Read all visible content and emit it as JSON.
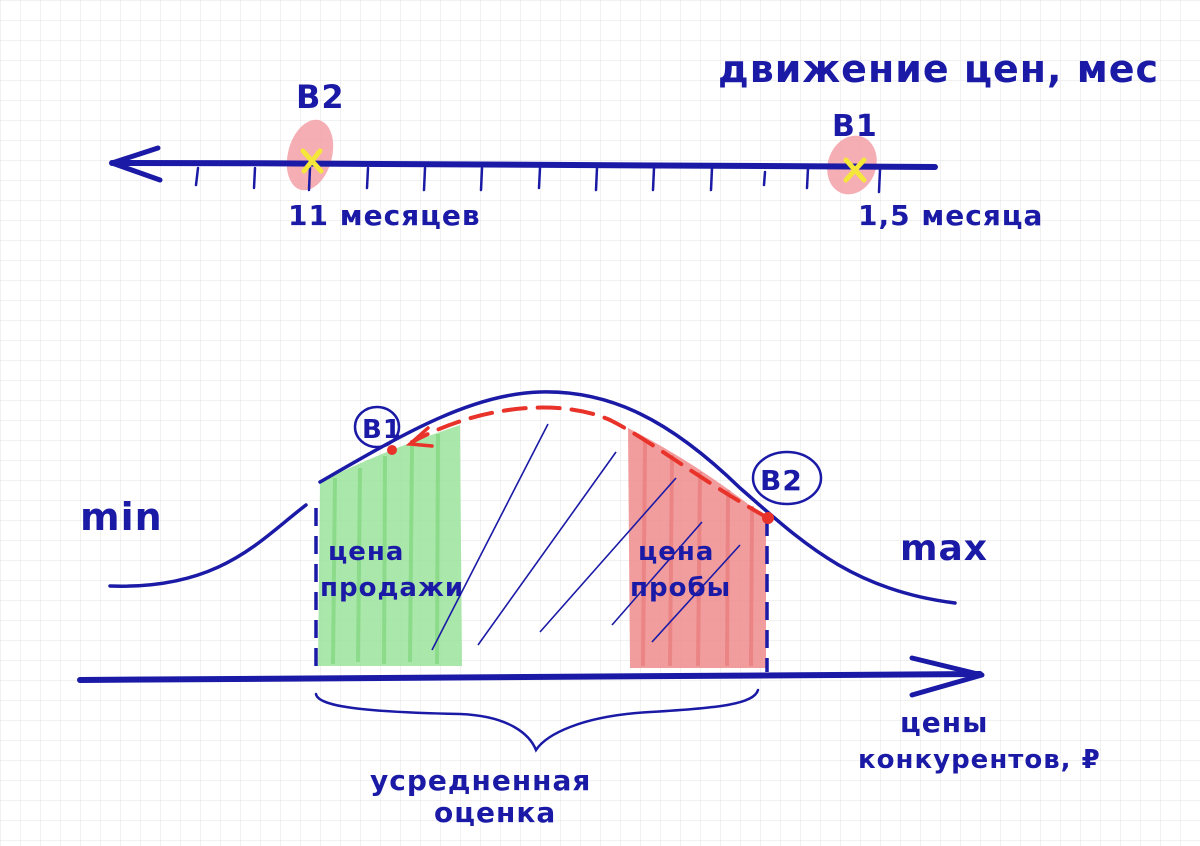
{
  "colors": {
    "ink": "#1a1aa6",
    "grid": "#e3e3e3",
    "green_fill": "#9be39b",
    "red_fill": "#f08c8c",
    "red_line": "#e8322a",
    "marker": "#f5e63a",
    "marker_bg": "#f4a0a8"
  },
  "timeline": {
    "title": "движение цен, мес",
    "left_marker": {
      "label": "В2",
      "caption": "11 месяцев"
    },
    "right_marker": {
      "label": "В1",
      "caption": "1,5 месяца"
    }
  },
  "distribution": {
    "min_label": "min",
    "max_label": "max",
    "left_point": "В1",
    "right_point": "В2",
    "green_zone_lines": [
      "цена",
      "продажи"
    ],
    "red_zone_lines": [
      "цена",
      "пробы"
    ],
    "brace_lines": [
      "усредненная",
      "оценка"
    ],
    "axis_label_lines": [
      "цены",
      "конкурентов, ₽"
    ]
  }
}
